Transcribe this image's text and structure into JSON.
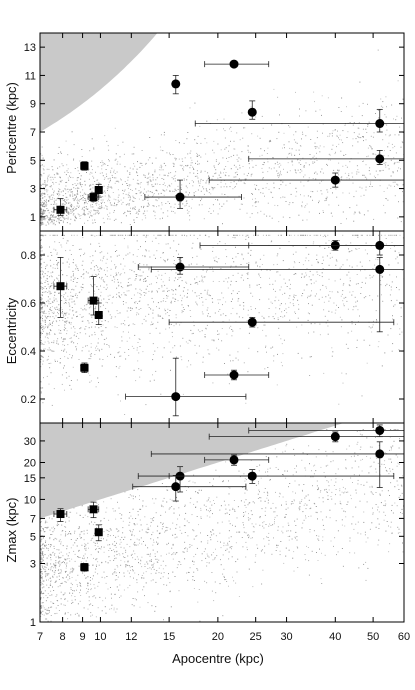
{
  "chart_data": [
    {
      "type": "scatter",
      "ylabel": "Pericentre (kpc)",
      "x_scale": "log",
      "xlim": [
        7,
        60
      ],
      "ylim": [
        0,
        14
      ],
      "yticks": [
        1,
        3,
        5,
        7,
        9,
        11,
        13
      ],
      "ytick_labels": [
        "1",
        "3",
        "5",
        "7",
        "9",
        "11",
        "13"
      ],
      "excluded_region": "pericentre greater than apocentre (shaded, top-left)",
      "background": "grey point cloud of simulated orbits",
      "series": [
        {
          "marker": "square",
          "points": [
            {
              "x": 7.9,
              "y": 1.5,
              "xerr": [
                0.3,
                0.3
              ],
              "yerr": [
                0.4,
                0.8
              ]
            },
            {
              "x": 9.1,
              "y": 4.6,
              "xerr": [
                0.2,
                0.2
              ],
              "yerr": [
                0.3,
                0.3
              ]
            },
            {
              "x": 9.6,
              "y": 2.4,
              "xerr": [
                0.3,
                0.3
              ],
              "yerr": [
                0.3,
                0.3
              ]
            },
            {
              "x": 9.9,
              "y": 2.9,
              "xerr": [
                0.2,
                0.2
              ],
              "yerr": [
                0.5,
                0.4
              ]
            }
          ]
        },
        {
          "marker": "circle",
          "points": [
            {
              "x": 15.6,
              "y": 10.4,
              "xerr": [
                0.2,
                0.2
              ],
              "yerr": [
                0.7,
                0.6
              ]
            },
            {
              "x": 16.0,
              "y": 2.4,
              "xerr": [
                3.0,
                7.0
              ],
              "yerr": [
                0.8,
                1.2
              ]
            },
            {
              "x": 22.0,
              "y": 11.8,
              "xerr": [
                3.5,
                5.0
              ],
              "yerr": [
                0.2,
                0.2
              ]
            },
            {
              "x": 24.5,
              "y": 8.4,
              "xerr": [
                0.3,
                0.3
              ],
              "yerr": [
                0.5,
                0.8
              ]
            },
            {
              "x": 40.0,
              "y": 3.6,
              "xerr": [
                21.0,
                20.0
              ],
              "yerr": [
                0.5,
                0.5
              ]
            },
            {
              "x": 52.0,
              "y": 7.6,
              "xerr": [
                34.5,
                8.0
              ],
              "yerr": [
                0.6,
                1.0
              ]
            },
            {
              "x": 52.0,
              "y": 5.1,
              "xerr": [
                28.0,
                8.0
              ],
              "yerr": [
                0.4,
                0.6
              ]
            }
          ]
        }
      ]
    },
    {
      "type": "scatter",
      "ylabel": "Eccentricity",
      "x_scale": "log",
      "xlim": [
        7,
        60
      ],
      "ylim": [
        0.1,
        0.9
      ],
      "yticks": [
        0.2,
        0.4,
        0.6,
        0.8
      ],
      "ytick_labels": [
        "0.2",
        "0.4",
        "0.6",
        "0.8"
      ],
      "background": "grey point cloud of simulated orbits",
      "series": [
        {
          "marker": "square",
          "points": [
            {
              "x": 7.9,
              "y": 0.67,
              "xerr": [
                0.3,
                0.3
              ],
              "yerr": [
                0.13,
                0.12
              ]
            },
            {
              "x": 9.1,
              "y": 0.33,
              "xerr": [
                0.2,
                0.2
              ],
              "yerr": [
                0.02,
                0.02
              ]
            },
            {
              "x": 9.6,
              "y": 0.61,
              "xerr": [
                0.3,
                0.3
              ],
              "yerr": [
                0.06,
                0.1
              ]
            },
            {
              "x": 9.9,
              "y": 0.55,
              "xerr": [
                0.2,
                0.2
              ],
              "yerr": [
                0.04,
                0.05
              ]
            }
          ]
        },
        {
          "marker": "circle",
          "points": [
            {
              "x": 15.6,
              "y": 0.21,
              "xerr": [
                4.0,
                8.0
              ],
              "yerr": [
                0.08,
                0.16
              ]
            },
            {
              "x": 16.0,
              "y": 0.75,
              "xerr": [
                3.5,
                8.0
              ],
              "yerr": [
                0.03,
                0.04
              ]
            },
            {
              "x": 22.0,
              "y": 0.3,
              "xerr": [
                3.5,
                5.0
              ],
              "yerr": [
                0.02,
                0.02
              ]
            },
            {
              "x": 24.5,
              "y": 0.52,
              "xerr": [
                9.5,
                32.0
              ],
              "yerr": [
                0.02,
                0.02
              ]
            },
            {
              "x": 40.0,
              "y": 0.84,
              "xerr": [
                22.0,
                20.0
              ],
              "yerr": [
                0.02,
                0.02
              ]
            },
            {
              "x": 52.0,
              "y": 0.84,
              "xerr": [
                28.0,
                8.0
              ],
              "yerr": [
                0.04,
                0.09
              ]
            },
            {
              "x": 52.0,
              "y": 0.74,
              "xerr": [
                38.5,
                8.0
              ],
              "yerr": [
                0.26,
                0.05
              ]
            }
          ]
        }
      ]
    },
    {
      "type": "scatter",
      "ylabel": "Zmax (kpc)",
      "xlabel": "Apocentre (kpc)",
      "x_scale": "log",
      "y_scale": "log",
      "xlim": [
        7,
        60
      ],
      "ylim": [
        1,
        42
      ],
      "xticks": [
        7,
        8,
        9,
        10,
        12,
        15,
        20,
        25,
        30,
        40,
        50,
        60
      ],
      "xtick_labels": [
        "7",
        "8",
        "9",
        "10",
        "12",
        "15",
        "20",
        "25",
        "30",
        "40",
        "50",
        "60"
      ],
      "yticks": [
        1,
        3,
        5,
        7,
        10,
        15,
        20,
        30
      ],
      "ytick_labels": [
        "1",
        "3",
        "5",
        "7",
        "10",
        "15",
        "20",
        "30"
      ],
      "excluded_region": "Zmax greater than apocentre (shaded, top-left)",
      "background": "grey point cloud of simulated orbits",
      "series": [
        {
          "marker": "square",
          "points": [
            {
              "x": 7.9,
              "y": 7.6,
              "xerr": [
                0.3,
                0.3
              ],
              "yerr": [
                1.0,
                0.8
              ]
            },
            {
              "x": 9.1,
              "y": 2.8,
              "xerr": [
                0.2,
                0.2
              ],
              "yerr": [
                0.2,
                0.2
              ]
            },
            {
              "x": 9.6,
              "y": 8.3,
              "xerr": [
                0.3,
                0.3
              ],
              "yerr": [
                1.2,
                1.2
              ]
            },
            {
              "x": 9.9,
              "y": 5.4,
              "xerr": [
                0.2,
                0.2
              ],
              "yerr": [
                0.8,
                0.8
              ]
            }
          ]
        },
        {
          "marker": "circle",
          "points": [
            {
              "x": 15.6,
              "y": 12.7,
              "xerr": [
                3.5,
                8.0
              ],
              "yerr": [
                3.0,
                3.0
              ]
            },
            {
              "x": 16.0,
              "y": 15.5,
              "xerr": [
                3.5,
                8.0
              ],
              "yerr": [
                4.0,
                3.0
              ]
            },
            {
              "x": 22.0,
              "y": 21.0,
              "xerr": [
                3.5,
                5.0
              ],
              "yerr": [
                2.0,
                2.0
              ]
            },
            {
              "x": 24.5,
              "y": 15.5,
              "xerr": [
                9.5,
                32.0
              ],
              "yerr": [
                2.0,
                2.0
              ]
            },
            {
              "x": 40.0,
              "y": 32.5,
              "xerr": [
                21.0,
                20.0
              ],
              "yerr": [
                3.0,
                3.0
              ]
            },
            {
              "x": 52.0,
              "y": 36.5,
              "xerr": [
                28.0,
                8.0
              ],
              "yerr": [
                4.0,
                4.0
              ]
            },
            {
              "x": 52.0,
              "y": 23.5,
              "xerr": [
                38.5,
                8.0
              ],
              "yerr": [
                11.0,
                6.0
              ]
            }
          ]
        }
      ]
    }
  ]
}
